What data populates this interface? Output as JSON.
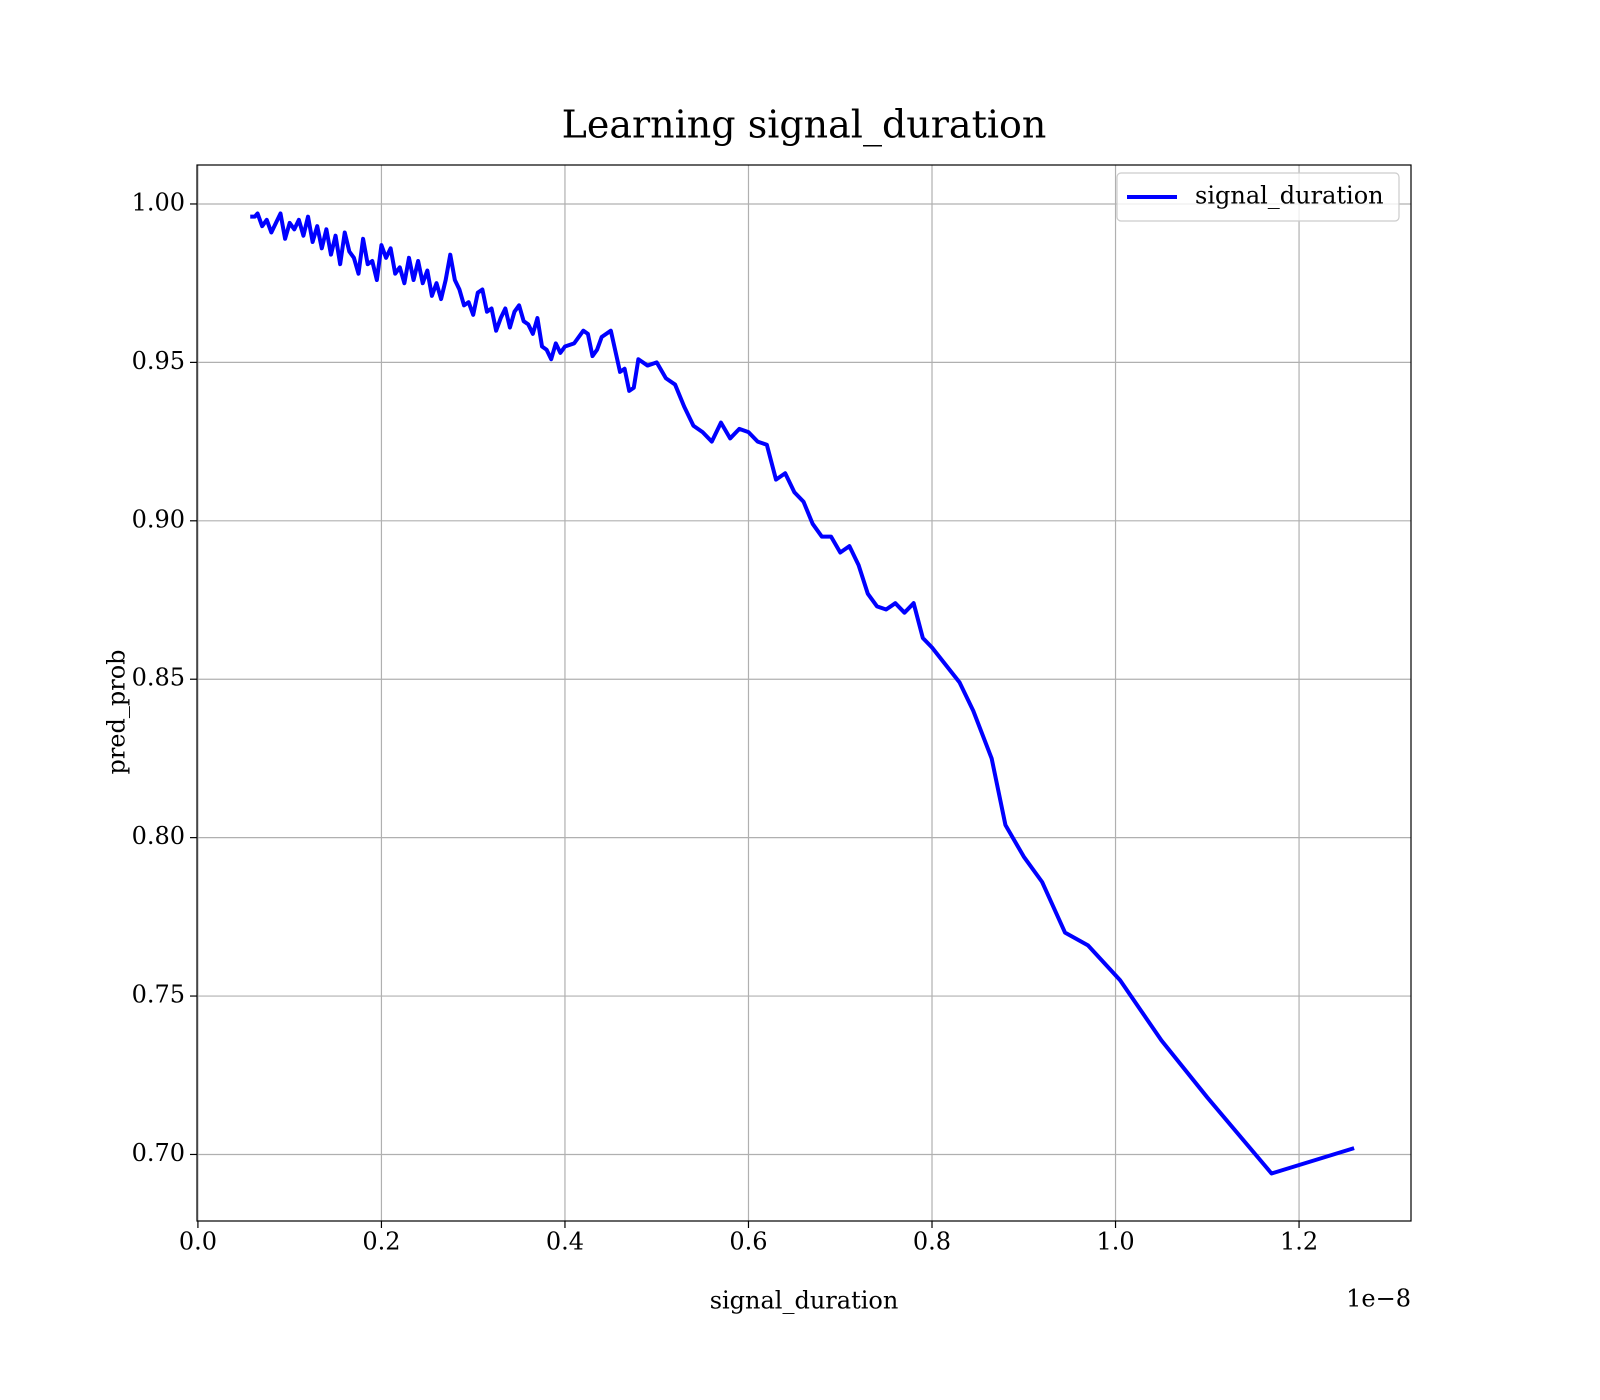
{
  "chart_data": {
    "type": "line",
    "title": "Learning signal_duration",
    "xlabel": "signal_duration",
    "ylabel": "pred_prob",
    "x_offset_label": "1e−8",
    "x": [
      0.057,
      0.062,
      0.065,
      0.07,
      0.075,
      0.08,
      0.085,
      0.09,
      0.095,
      0.1,
      0.105,
      0.11,
      0.115,
      0.12,
      0.125,
      0.13,
      0.135,
      0.14,
      0.145,
      0.15,
      0.155,
      0.16,
      0.165,
      0.17,
      0.175,
      0.18,
      0.185,
      0.19,
      0.195,
      0.2,
      0.205,
      0.21,
      0.215,
      0.22,
      0.225,
      0.23,
      0.235,
      0.24,
      0.245,
      0.25,
      0.255,
      0.26,
      0.265,
      0.27,
      0.275,
      0.28,
      0.285,
      0.29,
      0.295,
      0.3,
      0.305,
      0.31,
      0.315,
      0.32,
      0.325,
      0.33,
      0.335,
      0.34,
      0.345,
      0.35,
      0.355,
      0.36,
      0.365,
      0.37,
      0.375,
      0.38,
      0.385,
      0.39,
      0.395,
      0.4,
      0.41,
      0.42,
      0.425,
      0.43,
      0.435,
      0.44,
      0.45,
      0.46,
      0.465,
      0.47,
      0.475,
      0.48,
      0.49,
      0.5,
      0.51,
      0.52,
      0.53,
      0.54,
      0.55,
      0.56,
      0.57,
      0.58,
      0.59,
      0.6,
      0.61,
      0.62,
      0.63,
      0.64,
      0.65,
      0.66,
      0.67,
      0.68,
      0.69,
      0.7,
      0.71,
      0.72,
      0.73,
      0.74,
      0.75,
      0.76,
      0.77,
      0.78,
      0.79,
      0.8,
      0.83,
      0.845,
      0.865,
      0.88,
      0.9,
      0.92,
      0.945,
      0.97,
      1.005,
      1.05,
      1.1,
      1.17,
      1.26
    ],
    "series": [
      {
        "name": "signal_duration",
        "color": "#0000ff",
        "values": [
          0.996,
          0.996,
          0.997,
          0.993,
          0.995,
          0.991,
          0.994,
          0.997,
          0.989,
          0.994,
          0.992,
          0.995,
          0.99,
          0.996,
          0.988,
          0.993,
          0.986,
          0.992,
          0.984,
          0.99,
          0.981,
          0.991,
          0.985,
          0.983,
          0.978,
          0.989,
          0.981,
          0.982,
          0.976,
          0.987,
          0.983,
          0.986,
          0.978,
          0.98,
          0.975,
          0.983,
          0.976,
          0.982,
          0.975,
          0.979,
          0.971,
          0.975,
          0.97,
          0.976,
          0.984,
          0.976,
          0.973,
          0.968,
          0.969,
          0.965,
          0.972,
          0.973,
          0.966,
          0.967,
          0.96,
          0.964,
          0.967,
          0.961,
          0.966,
          0.968,
          0.963,
          0.962,
          0.959,
          0.964,
          0.955,
          0.954,
          0.951,
          0.956,
          0.953,
          0.955,
          0.956,
          0.96,
          0.959,
          0.952,
          0.954,
          0.958,
          0.96,
          0.947,
          0.948,
          0.941,
          0.942,
          0.951,
          0.949,
          0.95,
          0.945,
          0.943,
          0.936,
          0.93,
          0.928,
          0.925,
          0.931,
          0.926,
          0.929,
          0.928,
          0.925,
          0.924,
          0.913,
          0.915,
          0.909,
          0.906,
          0.899,
          0.895,
          0.895,
          0.89,
          0.892,
          0.886,
          0.877,
          0.873,
          0.872,
          0.874,
          0.871,
          0.874,
          0.863,
          0.86,
          0.849,
          0.84,
          0.825,
          0.804,
          0.794,
          0.786,
          0.77,
          0.766,
          0.755,
          0.736,
          0.718,
          0.694,
          0.702
        ]
      }
    ],
    "xlim": [
      -0.001,
      1.322
    ],
    "ylim": [
      0.679,
      1.0123
    ],
    "xticks": [
      {
        "value": 0,
        "label": "0.0"
      },
      0.2,
      0.4,
      0.6,
      0.8,
      {
        "value": 1,
        "label": "1.0"
      },
      1.2
    ],
    "yticks": [
      {
        "value": 0.7,
        "label": "0.70"
      },
      {
        "value": 0.75,
        "label": "0.75"
      },
      {
        "value": 0.8,
        "label": "0.80"
      },
      {
        "value": 0.85,
        "label": "0.85"
      },
      {
        "value": 0.9,
        "label": "0.90"
      },
      {
        "value": 0.95,
        "label": "0.95"
      },
      {
        "value": 1,
        "label": "1.00"
      }
    ],
    "grid": true,
    "legend": "upper right"
  }
}
